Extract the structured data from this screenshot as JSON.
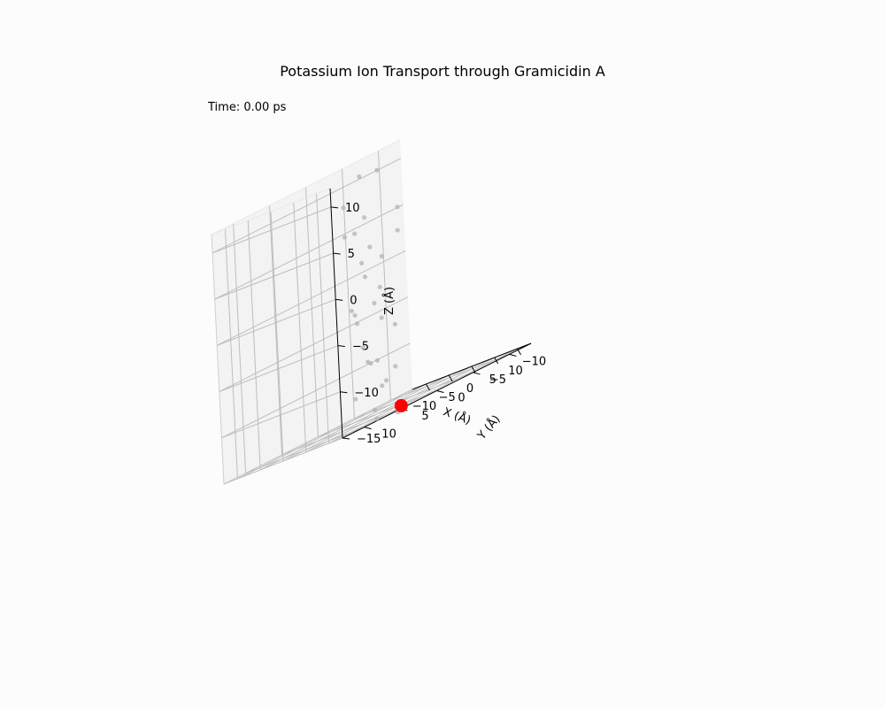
{
  "chart_data": {
    "type": "scatter",
    "title": "Potassium Ion Transport through Gramicidin A",
    "annotation": "Time: 0.00 ps",
    "xlabel": "X (Å)",
    "ylabel": "Y (Å)",
    "zlabel": "Z (Å)",
    "xlim": [
      -13,
      13
    ],
    "ylim": [
      -13,
      13
    ],
    "zlim": [
      -15,
      12
    ],
    "x_ticks": [
      -10,
      -5,
      0,
      5,
      10
    ],
    "y_ticks": [
      -10,
      -5,
      0,
      5,
      10
    ],
    "z_ticks": [
      -15,
      -10,
      -5,
      0,
      5,
      10
    ],
    "grid": true,
    "series": [
      {
        "role": "channel atoms",
        "color": "#b3b3b3",
        "points": [
          {
            "x": 0.2,
            "y": 1.0,
            "z": 11.0
          },
          {
            "x": 4.7,
            "y": 1.4,
            "z": 11.0
          },
          {
            "x": -4.5,
            "y": 0.4,
            "z": 8.3
          },
          {
            "x": 1.5,
            "y": 1.4,
            "z": 6.5
          },
          {
            "x": 4.1,
            "y": -1.5,
            "z": 6.0
          },
          {
            "x": -4.7,
            "y": 0.3,
            "z": 5.1
          },
          {
            "x": -3.8,
            "y": -0.5,
            "z": 5.0
          },
          {
            "x": 3.4,
            "y": -1.8,
            "z": 3.5
          },
          {
            "x": -0.2,
            "y": -0.2,
            "z": 3.0
          },
          {
            "x": 1.8,
            "y": -0.5,
            "z": 1.5
          },
          {
            "x": -4.2,
            "y": -1.5,
            "z": 1.5
          },
          {
            "x": -2.0,
            "y": -0.5,
            "z": 0.0
          },
          {
            "x": 4.6,
            "y": 1.7,
            "z": -1.5
          },
          {
            "x": 2.9,
            "y": 1.5,
            "z": -3.0
          },
          {
            "x": -3.8,
            "y": 0.4,
            "z": -3.0
          },
          {
            "x": -1.4,
            "y": 1.5,
            "z": -3.5
          },
          {
            "x": -1.5,
            "y": 1.2,
            "z": -4.5
          },
          {
            "x": 1.6,
            "y": -0.2,
            "z": -5.0
          },
          {
            "x": 3.3,
            "y": -0.9,
            "z": -6.3
          },
          {
            "x": -4.3,
            "y": -1.2,
            "z": -7.5
          },
          {
            "x": 0.4,
            "y": 1.2,
            "z": -9.0
          },
          {
            "x": 1.2,
            "y": 0.4,
            "z": -9.3
          },
          {
            "x": -3.3,
            "y": -1.5,
            "z": -9.5
          },
          {
            "x": 2.6,
            "y": -1.1,
            "z": -10.8
          },
          {
            "x": 1.0,
            "y": -0.8,
            "z": -11.9
          },
          {
            "x": -0.3,
            "y": -1.0,
            "z": -12.3
          },
          {
            "x": -3.6,
            "y": 0.6,
            "z": -12.5
          },
          {
            "x": 3.0,
            "y": 2.2,
            "z": -14.3
          },
          {
            "x": 0.0,
            "y": 0.1,
            "z": -15.5
          },
          {
            "x": 2.0,
            "y": -1.5,
            "z": -15.8
          }
        ]
      },
      {
        "role": "potassium ion",
        "color": "#ff0000",
        "points": [
          {
            "x": 2.0,
            "y": -2.0,
            "z": -15.3
          }
        ]
      }
    ]
  }
}
